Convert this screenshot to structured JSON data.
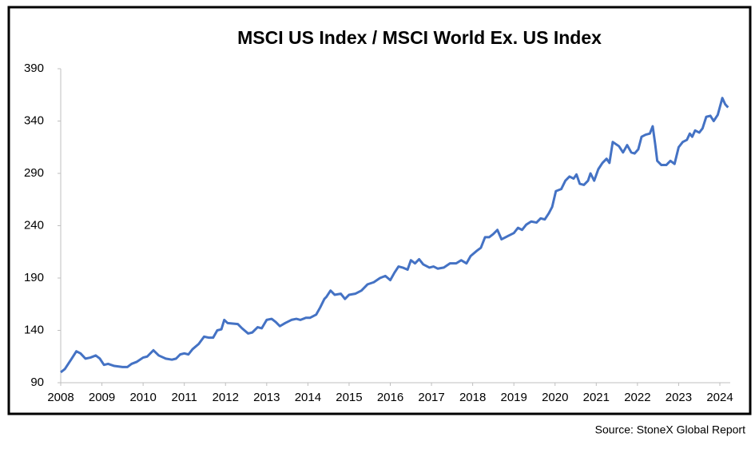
{
  "chart_data": {
    "type": "line",
    "title": "MSCI US Index / MSCI World Ex. US Index",
    "source": "Source: StoneX Global Report",
    "x": [
      2008.0,
      2008.1,
      2008.25,
      2008.38,
      2008.48,
      2008.6,
      2008.72,
      2008.85,
      2008.95,
      2009.05,
      2009.15,
      2009.3,
      2009.5,
      2009.62,
      2009.72,
      2009.85,
      2010.0,
      2010.1,
      2010.25,
      2010.38,
      2010.55,
      2010.7,
      2010.8,
      2010.9,
      2011.0,
      2011.1,
      2011.2,
      2011.35,
      2011.48,
      2011.6,
      2011.7,
      2011.8,
      2011.9,
      2011.97,
      2012.05,
      2012.3,
      2012.4,
      2012.55,
      2012.65,
      2012.78,
      2012.88,
      2013.0,
      2013.12,
      2013.22,
      2013.32,
      2013.45,
      2013.6,
      2013.72,
      2013.82,
      2013.95,
      2014.05,
      2014.2,
      2014.3,
      2014.4,
      2014.45,
      2014.55,
      2014.65,
      2014.8,
      2014.9,
      2015.0,
      2015.15,
      2015.3,
      2015.45,
      2015.6,
      2015.75,
      2015.88,
      2016.0,
      2016.1,
      2016.2,
      2016.3,
      2016.42,
      2016.5,
      2016.6,
      2016.7,
      2016.8,
      2016.95,
      2017.05,
      2017.15,
      2017.3,
      2017.45,
      2017.6,
      2017.72,
      2017.85,
      2017.95,
      2018.1,
      2018.2,
      2018.3,
      2018.4,
      2018.5,
      2018.6,
      2018.7,
      2018.85,
      2019.0,
      2019.1,
      2019.2,
      2019.3,
      2019.42,
      2019.55,
      2019.65,
      2019.75,
      2019.85,
      2019.93,
      2020.02,
      2020.15,
      2020.25,
      2020.35,
      2020.45,
      2020.52,
      2020.6,
      2020.7,
      2020.8,
      2020.86,
      2020.95,
      2021.05,
      2021.15,
      2021.25,
      2021.32,
      2021.4,
      2021.55,
      2021.65,
      2021.75,
      2021.85,
      2021.93,
      2022.02,
      2022.1,
      2022.2,
      2022.3,
      2022.37,
      2022.43,
      2022.48,
      2022.58,
      2022.7,
      2022.8,
      2022.9,
      2023.0,
      2023.1,
      2023.2,
      2023.27,
      2023.33,
      2023.4,
      2023.5,
      2023.58,
      2023.67,
      2023.77,
      2023.85,
      2023.95,
      2024.06,
      2024.13,
      2024.2
    ],
    "series": [
      {
        "name": "MSCI US Index / MSCI World Ex. US Index",
        "color": "#4472c4",
        "values": [
          100,
          103,
          112,
          120,
          118,
          113,
          114,
          116,
          113,
          107,
          108,
          106,
          105,
          105,
          108,
          110,
          114,
          115,
          121,
          116,
          113,
          112,
          113,
          117,
          118,
          117,
          122,
          127,
          134,
          133,
          133,
          140,
          141,
          150,
          147,
          146,
          142,
          137,
          138,
          143,
          142,
          150,
          151,
          148,
          144,
          147,
          150,
          151,
          150,
          152,
          152,
          155,
          162,
          170,
          172,
          178,
          174,
          175,
          170,
          174,
          175,
          178,
          184,
          186,
          190,
          192,
          188,
          195,
          201,
          200,
          198,
          207,
          204,
          208,
          203,
          200,
          201,
          199,
          200,
          204,
          204,
          207,
          204,
          211,
          216,
          219,
          229,
          229,
          232,
          236,
          227,
          230,
          233,
          238,
          236,
          241,
          244,
          243,
          247,
          246,
          252,
          258,
          273,
          275,
          283,
          287,
          285,
          289,
          280,
          279,
          283,
          290,
          283,
          294,
          300,
          304,
          300,
          320,
          316,
          310,
          317,
          310,
          309,
          313,
          325,
          327,
          328,
          335,
          318,
          302,
          298,
          298,
          302,
          299,
          315,
          320,
          322,
          328,
          325,
          331,
          329,
          333,
          344,
          345,
          340,
          346,
          362,
          356,
          353
        ]
      }
    ],
    "xlim": [
      2008,
      2024.25
    ],
    "ylim": [
      90,
      390
    ],
    "xticks": [
      2008,
      2009,
      2010,
      2011,
      2012,
      2013,
      2014,
      2015,
      2016,
      2017,
      2018,
      2019,
      2020,
      2021,
      2022,
      2023,
      2024
    ],
    "yticks": [
      90,
      140,
      190,
      240,
      290,
      340,
      390
    ],
    "grid": false
  }
}
